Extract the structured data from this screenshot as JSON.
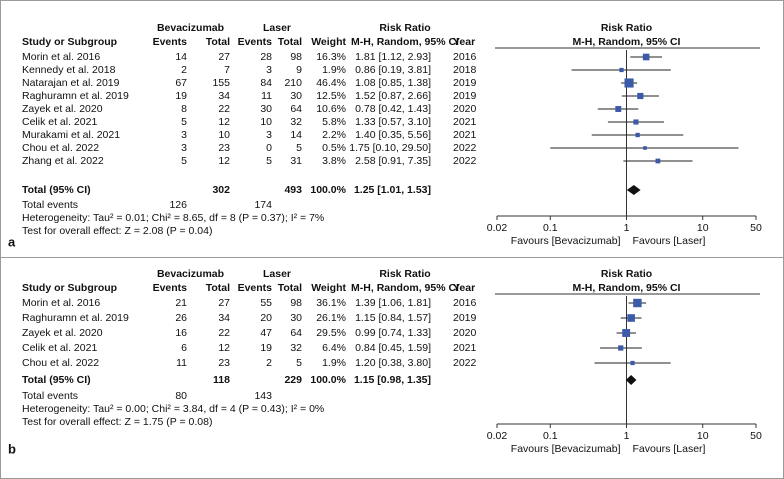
{
  "chart_data": [
    {
      "type": "forest",
      "panel_label": "a",
      "group_headers": {
        "experimental": "Bevacizumab",
        "control": "Laser",
        "effect": "Risk Ratio"
      },
      "column_headers": {
        "study": "Study or Subgroup",
        "exp_events": "Events",
        "exp_total": "Total",
        "ctl_events": "Events",
        "ctl_total": "Total",
        "weight": "Weight",
        "ci": "M-H, Random, 95% CI",
        "year": "Year"
      },
      "studies": [
        {
          "name": "Morin et al. 2016",
          "exp_events": 14,
          "exp_total": 27,
          "ctl_events": 28,
          "ctl_total": 98,
          "weight": 16.3,
          "weight_label": "16.3%",
          "rr": 1.81,
          "ci": [
            1.12,
            2.93
          ],
          "ci_label": "1.81 [1.12, 2.93]",
          "year": "2016"
        },
        {
          "name": "Kennedy et al. 2018",
          "exp_events": 2,
          "exp_total": 7,
          "ctl_events": 3,
          "ctl_total": 9,
          "weight": 1.9,
          "weight_label": "1.9%",
          "rr": 0.86,
          "ci": [
            0.19,
            3.81
          ],
          "ci_label": "0.86 [0.19, 3.81]",
          "year": "2018"
        },
        {
          "name": "Natarajan et al. 2019",
          "exp_events": 67,
          "exp_total": 155,
          "ctl_events": 84,
          "ctl_total": 210,
          "weight": 46.4,
          "weight_label": "46.4%",
          "rr": 1.08,
          "ci": [
            0.85,
            1.38
          ],
          "ci_label": "1.08 [0.85, 1.38]",
          "year": "2019"
        },
        {
          "name": "Raghuramn et al. 2019",
          "exp_events": 19,
          "exp_total": 34,
          "ctl_events": 11,
          "ctl_total": 30,
          "weight": 12.5,
          "weight_label": "12.5%",
          "rr": 1.52,
          "ci": [
            0.87,
            2.66
          ],
          "ci_label": "1.52 [0.87, 2.66]",
          "year": "2019"
        },
        {
          "name": "Zayek et al. 2020",
          "exp_events": 8,
          "exp_total": 22,
          "ctl_events": 30,
          "ctl_total": 64,
          "weight": 10.6,
          "weight_label": "10.6%",
          "rr": 0.78,
          "ci": [
            0.42,
            1.43
          ],
          "ci_label": "0.78 [0.42, 1.43]",
          "year": "2020"
        },
        {
          "name": "Celik et al. 2021",
          "exp_events": 5,
          "exp_total": 12,
          "ctl_events": 10,
          "ctl_total": 32,
          "weight": 5.8,
          "weight_label": "5.8%",
          "rr": 1.33,
          "ci": [
            0.57,
            3.1
          ],
          "ci_label": "1.33 [0.57, 3.10]",
          "year": "2021"
        },
        {
          "name": "Murakami et al. 2021",
          "exp_events": 3,
          "exp_total": 10,
          "ctl_events": 3,
          "ctl_total": 14,
          "weight": 2.2,
          "weight_label": "2.2%",
          "rr": 1.4,
          "ci": [
            0.35,
            5.56
          ],
          "ci_label": "1.40 [0.35, 5.56]",
          "year": "2021"
        },
        {
          "name": "Chou et al. 2022",
          "exp_events": 3,
          "exp_total": 23,
          "ctl_events": 0,
          "ctl_total": 5,
          "weight": 0.5,
          "weight_label": "0.5%",
          "rr": 1.75,
          "ci": [
            0.1,
            29.5
          ],
          "ci_label": "1.75 [0.10, 29.50]",
          "year": "2022"
        },
        {
          "name": "Zhang et al. 2022",
          "exp_events": 5,
          "exp_total": 12,
          "ctl_events": 5,
          "ctl_total": 31,
          "weight": 3.8,
          "weight_label": "3.8%",
          "rr": 2.58,
          "ci": [
            0.91,
            7.35
          ],
          "ci_label": "2.58 [0.91, 7.35]",
          "year": "2022"
        }
      ],
      "total": {
        "name": "Total (95% CI)",
        "exp_total": 302,
        "ctl_total": 493,
        "weight_label": "100.0%",
        "rr": 1.25,
        "ci": [
          1.01,
          1.53
        ],
        "ci_label": "1.25 [1.01, 1.53]"
      },
      "total_events": {
        "name": "Total events",
        "exp_events": 126,
        "ctl_events": 174
      },
      "heterogeneity": "Heterogeneity: Tau² = 0.01; Chi² = 8.65, df = 8 (P = 0.37); I² = 7%",
      "overall_test": "Test for overall effect: Z = 2.08 (P = 0.04)",
      "plot_title": "Risk Ratio",
      "plot_subtitle": "M-H, Random, 95% CI",
      "xscale": "log",
      "xlim": [
        0.02,
        50
      ],
      "xticks": [
        0.02,
        0.1,
        1,
        10,
        50
      ],
      "favours_left": "Favours [Bevacizumab]",
      "favours_right": "Favours [Laser]",
      "color": "#3b5ba9"
    },
    {
      "type": "forest",
      "panel_label": "b",
      "group_headers": {
        "experimental": "Bevacizumab",
        "control": "Laser",
        "effect": "Risk Ratio"
      },
      "column_headers": {
        "study": "Study or Subgroup",
        "exp_events": "Events",
        "exp_total": "Total",
        "ctl_events": "Events",
        "ctl_total": "Total",
        "weight": "Weight",
        "ci": "M-H, Random, 95% CI",
        "year": "Year"
      },
      "studies": [
        {
          "name": "Morin et al. 2016",
          "exp_events": 21,
          "exp_total": 27,
          "ctl_events": 55,
          "ctl_total": 98,
          "weight": 36.1,
          "weight_label": "36.1%",
          "rr": 1.39,
          "ci": [
            1.06,
            1.81
          ],
          "ci_label": "1.39 [1.06, 1.81]",
          "year": "2016"
        },
        {
          "name": "Raghuramn et al. 2019",
          "exp_events": 26,
          "exp_total": 34,
          "ctl_events": 20,
          "ctl_total": 30,
          "weight": 26.1,
          "weight_label": "26.1%",
          "rr": 1.15,
          "ci": [
            0.84,
            1.57
          ],
          "ci_label": "1.15 [0.84, 1.57]",
          "year": "2019"
        },
        {
          "name": "Zayek et al. 2020",
          "exp_events": 16,
          "exp_total": 22,
          "ctl_events": 47,
          "ctl_total": 64,
          "weight": 29.5,
          "weight_label": "29.5%",
          "rr": 0.99,
          "ci": [
            0.74,
            1.33
          ],
          "ci_label": "0.99 [0.74, 1.33]",
          "year": "2020"
        },
        {
          "name": "Celik et al. 2021",
          "exp_events": 6,
          "exp_total": 12,
          "ctl_events": 19,
          "ctl_total": 32,
          "weight": 6.4,
          "weight_label": "6.4%",
          "rr": 0.84,
          "ci": [
            0.45,
            1.59
          ],
          "ci_label": "0.84 [0.45, 1.59]",
          "year": "2021"
        },
        {
          "name": "Chou et al. 2022",
          "exp_events": 11,
          "exp_total": 23,
          "ctl_events": 2,
          "ctl_total": 5,
          "weight": 1.9,
          "weight_label": "1.9%",
          "rr": 1.2,
          "ci": [
            0.38,
            3.8
          ],
          "ci_label": "1.20 [0.38, 3.80]",
          "year": "2022"
        }
      ],
      "total": {
        "name": "Total (95% CI)",
        "exp_total": 118,
        "ctl_total": 229,
        "weight_label": "100.0%",
        "rr": 1.15,
        "ci": [
          0.98,
          1.35
        ],
        "ci_label": "1.15 [0.98, 1.35]"
      },
      "total_events": {
        "name": "Total events",
        "exp_events": 80,
        "ctl_events": 143
      },
      "heterogeneity": "Heterogeneity: Tau² = 0.00; Chi² = 3.84, df = 4 (P = 0.43); I² = 0%",
      "overall_test": "Test for overall effect: Z = 1.75 (P = 0.08)",
      "plot_title": "Risk Ratio",
      "plot_subtitle": "M-H, Random, 95% CI",
      "xscale": "log",
      "xlim": [
        0.02,
        50
      ],
      "xticks": [
        0.02,
        0.1,
        1,
        10,
        50
      ],
      "favours_left": "Favours [Bevacizumab]",
      "favours_right": "Favours [Laser]",
      "color": "#3b5ba9"
    }
  ]
}
